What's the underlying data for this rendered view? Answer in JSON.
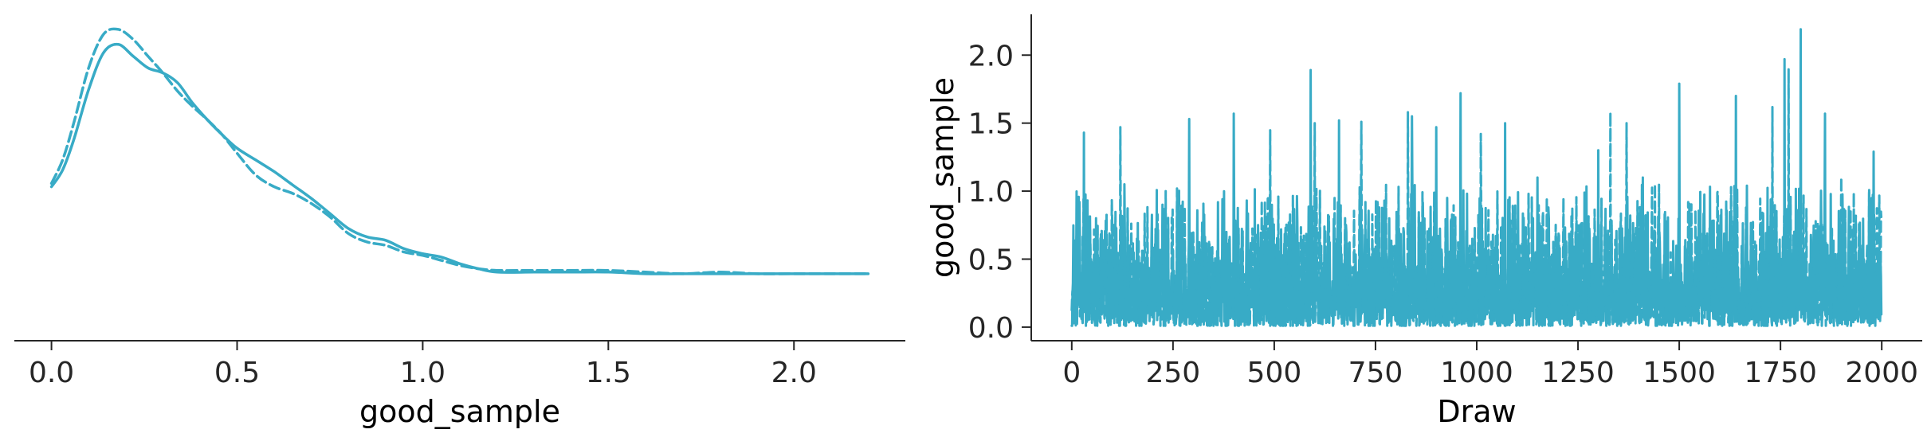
{
  "colors": {
    "series": "#38abc6",
    "axis": "#262626"
  },
  "chart_data": [
    {
      "type": "line",
      "subtype": "kde",
      "xlabel": "good_sample",
      "ylabel": "",
      "xlim": [
        -0.1,
        2.3
      ],
      "ylim": [
        0,
        1.95
      ],
      "x_ticks": [
        0.0,
        0.5,
        1.0,
        1.5,
        2.0
      ],
      "x_tick_labels": [
        "0.0",
        "0.5",
        "1.0",
        "1.5",
        "2.0"
      ],
      "y_axis_visible": false,
      "grid": false,
      "series": [
        {
          "style": "solid",
          "x": [
            0.0,
            0.03,
            0.06,
            0.1,
            0.14,
            0.18,
            0.22,
            0.26,
            0.3,
            0.34,
            0.38,
            0.42,
            0.46,
            0.5,
            0.55,
            0.6,
            0.65,
            0.7,
            0.75,
            0.8,
            0.85,
            0.9,
            0.95,
            1.0,
            1.05,
            1.1,
            1.15,
            1.2,
            1.3,
            1.4,
            1.5,
            1.6,
            1.7,
            1.8,
            1.9,
            2.0,
            2.1,
            2.2
          ],
          "y": [
            0.92,
            1.02,
            1.2,
            1.5,
            1.72,
            1.77,
            1.7,
            1.63,
            1.6,
            1.54,
            1.42,
            1.32,
            1.23,
            1.15,
            1.08,
            1.01,
            0.93,
            0.85,
            0.76,
            0.67,
            0.62,
            0.6,
            0.55,
            0.52,
            0.5,
            0.46,
            0.43,
            0.41,
            0.41,
            0.41,
            0.41,
            0.4,
            0.4,
            0.4,
            0.4,
            0.4,
            0.4,
            0.4
          ]
        },
        {
          "style": "dashed",
          "x": [
            0.0,
            0.03,
            0.06,
            0.1,
            0.14,
            0.18,
            0.22,
            0.26,
            0.3,
            0.34,
            0.38,
            0.42,
            0.46,
            0.5,
            0.55,
            0.6,
            0.65,
            0.7,
            0.75,
            0.8,
            0.85,
            0.9,
            0.95,
            1.0,
            1.05,
            1.1,
            1.15,
            1.2,
            1.3,
            1.4,
            1.5,
            1.6,
            1.7,
            1.8,
            1.9,
            2.0,
            2.1,
            2.2
          ],
          "y": [
            0.94,
            1.08,
            1.3,
            1.63,
            1.83,
            1.86,
            1.8,
            1.7,
            1.6,
            1.49,
            1.4,
            1.32,
            1.23,
            1.12,
            0.99,
            0.92,
            0.88,
            0.82,
            0.74,
            0.64,
            0.59,
            0.57,
            0.53,
            0.51,
            0.48,
            0.45,
            0.43,
            0.42,
            0.42,
            0.42,
            0.42,
            0.41,
            0.4,
            0.41,
            0.4,
            0.4,
            0.4,
            0.4
          ]
        }
      ]
    },
    {
      "type": "line",
      "subtype": "trace",
      "xlabel": "Draw",
      "ylabel": "good_sample",
      "xlim": [
        -100,
        2100
      ],
      "ylim": [
        -0.1,
        2.3
      ],
      "x_ticks": [
        0,
        250,
        500,
        750,
        1000,
        1250,
        1500,
        1750,
        2000
      ],
      "x_tick_labels": [
        "0",
        "250",
        "500",
        "750",
        "1000",
        "1250",
        "1500",
        "1750",
        "2000"
      ],
      "y_ticks": [
        0.0,
        0.5,
        1.0,
        1.5,
        2.0
      ],
      "y_tick_labels": [
        "0.0",
        "0.5",
        "1.0",
        "1.5",
        "2.0"
      ],
      "grid": false,
      "n_draws": 2000,
      "series": [
        {
          "style": "solid",
          "peaks": [
            [
              30,
              1.43
            ],
            [
              130,
              1.05
            ],
            [
              290,
              1.53
            ],
            [
              400,
              1.57
            ],
            [
              590,
              1.89
            ],
            [
              660,
              1.52
            ],
            [
              840,
              1.55
            ],
            [
              900,
              1.47
            ],
            [
              960,
              1.72
            ],
            [
              1070,
              1.5
            ],
            [
              1150,
              1.1
            ],
            [
              1300,
              1.3
            ],
            [
              1410,
              1.1
            ],
            [
              1500,
              1.79
            ],
            [
              1640,
              1.7
            ],
            [
              1760,
              1.97
            ],
            [
              1800,
              2.19
            ],
            [
              1860,
              1.57
            ],
            [
              1980,
              1.29
            ]
          ]
        },
        {
          "style": "dashed",
          "peaks": [
            [
              120,
              1.47
            ],
            [
              260,
              1.02
            ],
            [
              490,
              1.45
            ],
            [
              600,
              1.5
            ],
            [
              715,
              1.51
            ],
            [
              830,
              1.58
            ],
            [
              1010,
              1.42
            ],
            [
              1330,
              1.58
            ],
            [
              1370,
              1.5
            ],
            [
              1440,
              1.05
            ],
            [
              1730,
              1.62
            ],
            [
              1770,
              1.9
            ],
            [
              1900,
              1.1
            ]
          ]
        }
      ]
    }
  ]
}
